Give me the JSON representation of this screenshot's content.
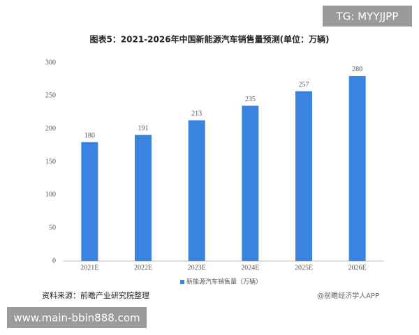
{
  "chart_data": {
    "type": "bar",
    "title": "图表5：2021-2026年中国新能源汽车销售量预测(单位：万辆)",
    "categories": [
      "2021E",
      "2022E",
      "2023E",
      "2024E",
      "2025E",
      "2026E"
    ],
    "series": [
      {
        "name": "新能源汽车销售量（万辆）",
        "color": "#3a83e0",
        "values": [
          180,
          191,
          213,
          235,
          257,
          280
        ]
      }
    ],
    "ylim": [
      0,
      300
    ],
    "yticks": [
      0,
      50,
      100,
      150,
      200,
      250,
      300
    ],
    "grid": false,
    "legend": "bottom"
  },
  "source": "资料来源：前瞻产业研究院整理",
  "watermark": "@前瞻经济学人APP",
  "overlay_top": "TG: MYYJJPP",
  "overlay_bottom": "www.main-bbin888.com"
}
